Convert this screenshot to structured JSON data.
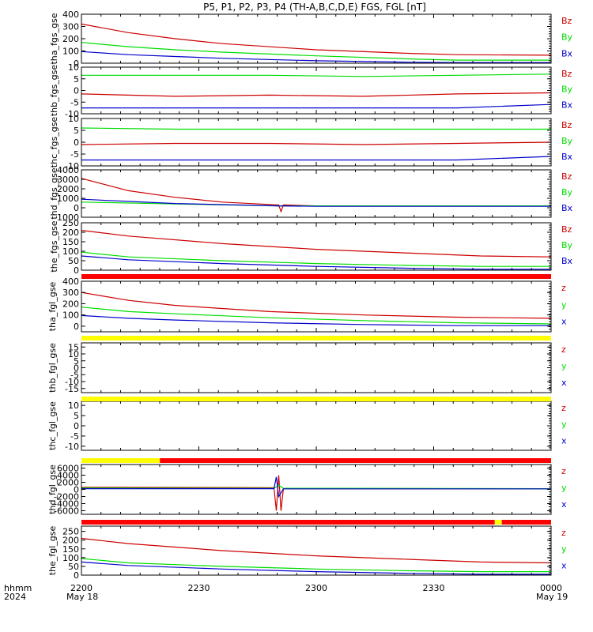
{
  "title": "P5, P1, P2, P3, P4 (TH-A,B,C,D,E) FGS, FGL [nT]",
  "colors": {
    "x": "#0000cc",
    "y": "#00dd00",
    "z": "#cc0000",
    "red_bar": "#ff0000",
    "yellow_bar": "#ffff00",
    "axis": "#000000"
  },
  "time_axis": {
    "ticks": [
      "2200",
      "2230",
      "2300",
      "2330",
      "0000"
    ],
    "hhmm_label": "hhmm",
    "year_label": "2024",
    "start_date": "May 18",
    "end_date": "May 19"
  },
  "chart_data": [
    {
      "type": "line",
      "panel": "tha_fgs_gse",
      "ylim": [
        0,
        400
      ],
      "yticks": [
        "400",
        "300",
        "200",
        "100",
        "0"
      ],
      "legend": [
        "Bz",
        "By",
        "Bx"
      ],
      "series": [
        {
          "name": "Bz",
          "x": [
            0,
            0.1,
            0.2,
            0.3,
            0.5,
            0.7,
            0.8,
            1.0
          ],
          "values": [
            320,
            250,
            200,
            160,
            110,
            80,
            70,
            65
          ]
        },
        {
          "name": "By",
          "x": [
            0,
            0.1,
            0.2,
            0.3,
            0.5,
            0.7,
            0.8,
            1.0
          ],
          "values": [
            170,
            135,
            110,
            90,
            60,
            35,
            25,
            25
          ]
        },
        {
          "name": "Bx",
          "x": [
            0,
            0.1,
            0.2,
            0.3,
            0.5,
            0.7,
            0.8,
            1.0
          ],
          "values": [
            95,
            70,
            55,
            40,
            20,
            8,
            5,
            5
          ]
        }
      ]
    },
    {
      "type": "line",
      "panel": "thb_fgs_gse",
      "ylim": [
        -10,
        10
      ],
      "yticks": [
        "10",
        "5",
        "0",
        "-5",
        "-10"
      ],
      "legend": [
        "Bz",
        "By",
        "Bx"
      ],
      "series": [
        {
          "name": "Bz",
          "x": [
            0,
            0.2,
            0.4,
            0.6,
            0.8,
            1.0
          ],
          "values": [
            -1.5,
            -2.5,
            -2,
            -2.5,
            -1.5,
            -1
          ]
        },
        {
          "name": "By",
          "x": [
            0,
            0.2,
            0.4,
            0.6,
            0.8,
            1.0
          ],
          "values": [
            6.5,
            6.5,
            6.5,
            6,
            6.5,
            7
          ]
        },
        {
          "name": "Bx",
          "x": [
            0,
            0.2,
            0.4,
            0.6,
            0.8,
            1.0
          ],
          "values": [
            -7.5,
            -7.5,
            -7.5,
            -7.5,
            -7.5,
            -6
          ]
        }
      ]
    },
    {
      "type": "line",
      "panel": "thc_fgs_gse",
      "ylim": [
        -10,
        10
      ],
      "yticks": [
        "10",
        "5",
        "0",
        "-5",
        "-10"
      ],
      "legend": [
        "Bz",
        "By",
        "Bx"
      ],
      "series": [
        {
          "name": "Bz",
          "x": [
            0,
            0.2,
            0.4,
            0.6,
            0.8,
            1.0
          ],
          "values": [
            -1,
            -0.5,
            -0.5,
            -1,
            -0.5,
            0
          ]
        },
        {
          "name": "By",
          "x": [
            0,
            0.2,
            0.4,
            0.6,
            0.8,
            1.0
          ],
          "values": [
            6,
            5.5,
            5.5,
            5.5,
            5.5,
            5.5
          ]
        },
        {
          "name": "Bx",
          "x": [
            0,
            0.2,
            0.4,
            0.6,
            0.8,
            1.0
          ],
          "values": [
            -7.5,
            -7.5,
            -7.5,
            -7.5,
            -7.5,
            -6
          ]
        }
      ]
    },
    {
      "type": "line",
      "panel": "thd_fgs_gse",
      "ylim": [
        -1000,
        4000
      ],
      "yticks": [
        "4000",
        "3000",
        "2000",
        "1000",
        "0",
        "-1000"
      ],
      "legend": [
        "Bz",
        "By",
        "Bx"
      ],
      "series": [
        {
          "name": "Bz",
          "x": [
            0,
            0.1,
            0.2,
            0.3,
            0.42,
            0.425,
            0.43,
            0.5,
            1.0
          ],
          "values": [
            3100,
            1800,
            1100,
            600,
            300,
            -400,
            300,
            200,
            200
          ]
        },
        {
          "name": "By",
          "x": [
            0,
            0.2,
            0.42,
            0.5,
            1.0
          ],
          "values": [
            600,
            400,
            200,
            200,
            200
          ]
        },
        {
          "name": "Bx",
          "x": [
            0,
            0.2,
            0.42,
            0.5,
            1.0
          ],
          "values": [
            900,
            450,
            200,
            150,
            150
          ]
        }
      ]
    },
    {
      "type": "line",
      "panel": "the_fgs_gse",
      "ylim": [
        0,
        250
      ],
      "yticks": [
        "250",
        "200",
        "150",
        "100",
        "50",
        "0"
      ],
      "legend": [
        "Bz",
        "By",
        "Bx"
      ],
      "series": [
        {
          "name": "Bz",
          "x": [
            0,
            0.1,
            0.3,
            0.5,
            0.7,
            0.85,
            1.0
          ],
          "values": [
            210,
            180,
            140,
            110,
            90,
            75,
            70
          ]
        },
        {
          "name": "By",
          "x": [
            0,
            0.1,
            0.3,
            0.5,
            0.7,
            0.85,
            1.0
          ],
          "values": [
            95,
            70,
            50,
            35,
            25,
            20,
            20
          ]
        },
        {
          "name": "Bx",
          "x": [
            0,
            0.1,
            0.3,
            0.5,
            0.7,
            0.85,
            1.0
          ],
          "values": [
            75,
            55,
            35,
            20,
            10,
            5,
            5
          ]
        }
      ]
    },
    {
      "type": "line",
      "panel": "tha_fgl_gse",
      "ylim": [
        -50,
        400
      ],
      "yticks": [
        "400",
        "300",
        "200",
        "100",
        "0"
      ],
      "legend": [
        "z",
        "y",
        "x"
      ],
      "series": [
        {
          "name": "z",
          "x": [
            0,
            0.1,
            0.2,
            0.4,
            0.6,
            0.8,
            1.0
          ],
          "values": [
            300,
            230,
            185,
            130,
            100,
            80,
            70
          ]
        },
        {
          "name": "y",
          "x": [
            0,
            0.1,
            0.2,
            0.4,
            0.6,
            0.8,
            1.0
          ],
          "values": [
            170,
            130,
            110,
            75,
            50,
            30,
            20
          ]
        },
        {
          "name": "x",
          "x": [
            0,
            0.1,
            0.2,
            0.4,
            0.6,
            0.8,
            1.0
          ],
          "values": [
            95,
            70,
            55,
            30,
            15,
            5,
            5
          ]
        }
      ]
    },
    {
      "type": "line",
      "panel": "thb_fgl_gse",
      "ylim": [
        -18,
        18
      ],
      "yticks": [
        "15",
        "10",
        "5",
        "0",
        "-5",
        "-10",
        "-15"
      ],
      "legend": [
        "z",
        "y",
        "x"
      ],
      "series": []
    },
    {
      "type": "line",
      "panel": "thc_fgl_gse",
      "ylim": [
        -12,
        12
      ],
      "yticks": [
        "10",
        "5",
        "0",
        "-5",
        "-10"
      ],
      "legend": [
        "z",
        "y",
        "x"
      ],
      "series": []
    },
    {
      "type": "line",
      "panel": "thd_fgl_gse",
      "ylim": [
        -7000,
        7000
      ],
      "yticks": [
        "6000",
        "4000",
        "2000",
        "0",
        "-2000",
        "-4000",
        "-6000"
      ],
      "legend": [
        "z",
        "y",
        "x"
      ],
      "series": [
        {
          "name": "z",
          "x": [
            0,
            0.1,
            0.41,
            0.415,
            0.42,
            0.425,
            0.43,
            1.0
          ],
          "values": [
            600,
            600,
            500,
            -6000,
            4000,
            -6000,
            200,
            200
          ]
        },
        {
          "name": "y",
          "x": [
            0,
            0.41,
            0.42,
            0.43,
            0.55,
            1.0
          ],
          "values": [
            400,
            300,
            1200,
            300,
            300,
            200
          ]
        },
        {
          "name": "x",
          "x": [
            0,
            0.41,
            0.415,
            0.42,
            0.43,
            1.0
          ],
          "values": [
            200,
            200,
            3500,
            -2000,
            150,
            150
          ]
        }
      ]
    },
    {
      "type": "line",
      "panel": "the_fgl_gse",
      "ylim": [
        0,
        280
      ],
      "yticks": [
        "250",
        "200",
        "150",
        "100",
        "50",
        "0"
      ],
      "legend": [
        "z",
        "y",
        "x"
      ],
      "series": [
        {
          "name": "z",
          "x": [
            0,
            0.1,
            0.3,
            0.5,
            0.7,
            0.85,
            1.0
          ],
          "values": [
            210,
            180,
            140,
            110,
            90,
            75,
            70
          ]
        },
        {
          "name": "y",
          "x": [
            0,
            0.1,
            0.3,
            0.5,
            0.7,
            0.85,
            1.0
          ],
          "values": [
            95,
            70,
            50,
            35,
            25,
            20,
            20
          ]
        },
        {
          "name": "x",
          "x": [
            0,
            0.1,
            0.3,
            0.5,
            0.7,
            0.85,
            1.0
          ],
          "values": [
            75,
            55,
            35,
            20,
            10,
            5,
            5
          ]
        }
      ]
    }
  ],
  "mode_bars": [
    {
      "segments": [
        {
          "from": 0,
          "to": 1,
          "color": "red"
        }
      ]
    },
    {
      "segments": [
        {
          "from": 0,
          "to": 1,
          "color": "yellow"
        }
      ]
    },
    {
      "segments": [
        {
          "from": 0,
          "to": 1,
          "color": "yellow"
        }
      ]
    },
    {
      "segments": [
        {
          "from": 0,
          "to": 0.167,
          "color": "yellow"
        },
        {
          "from": 0.167,
          "to": 1,
          "color": "red"
        }
      ]
    },
    {
      "segments": [
        {
          "from": 0,
          "to": 0.88,
          "color": "red"
        },
        {
          "from": 0.88,
          "to": 0.895,
          "color": "yellow"
        },
        {
          "from": 0.895,
          "to": 1,
          "color": "red"
        }
      ]
    }
  ]
}
